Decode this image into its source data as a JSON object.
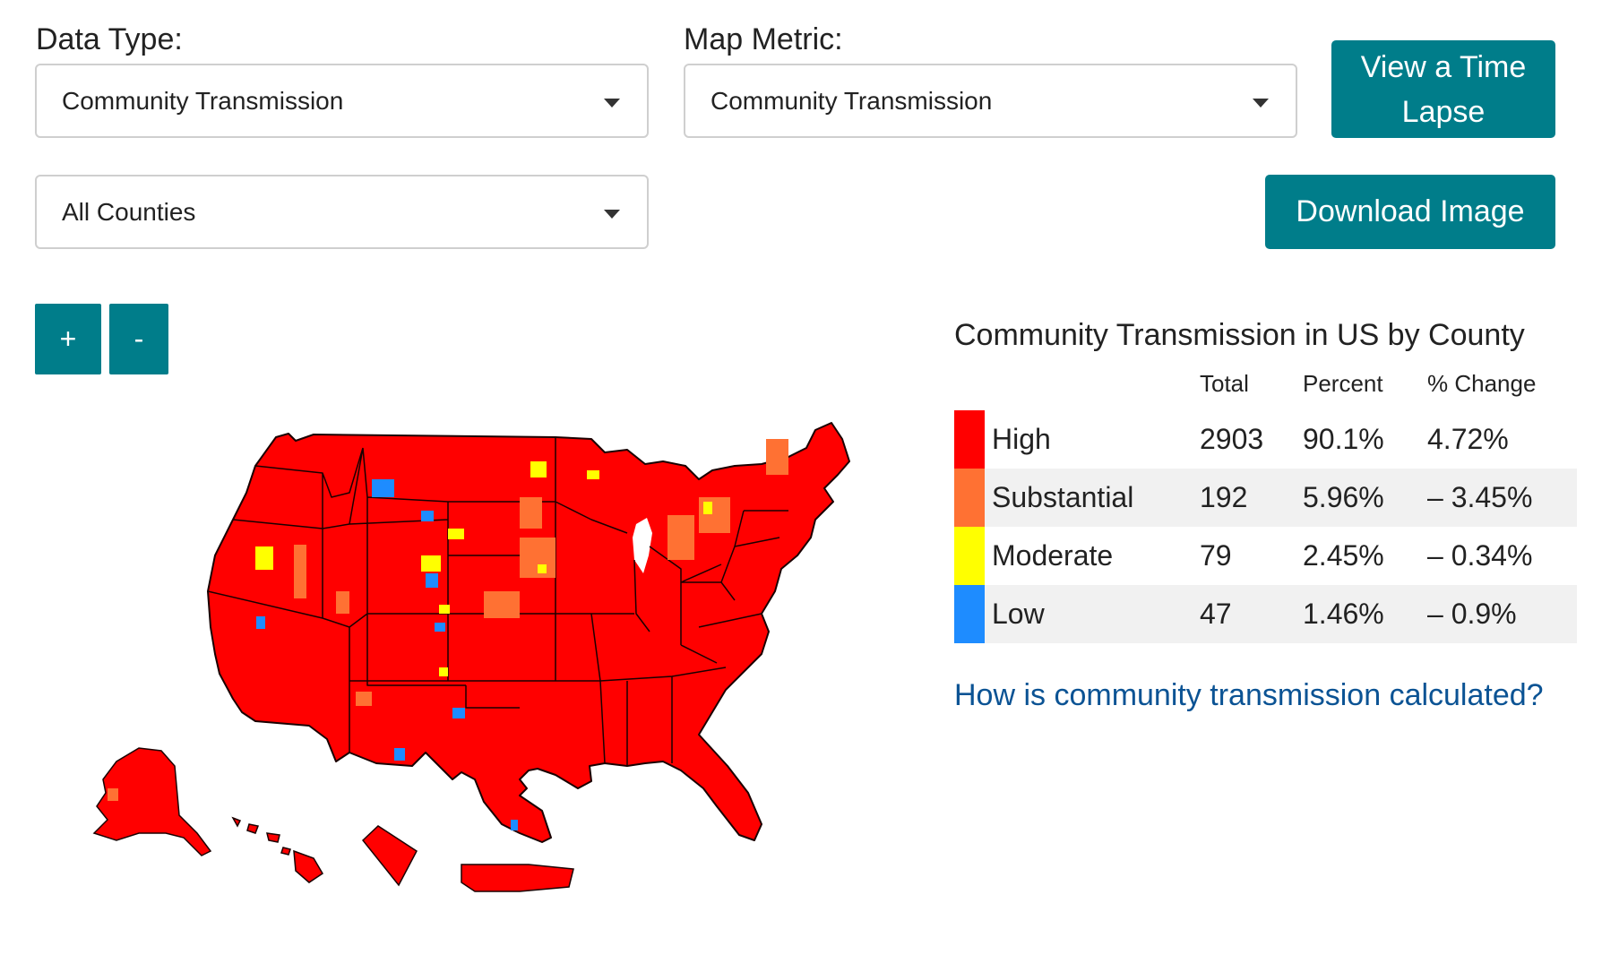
{
  "controls": {
    "data_type_label": "Data Type:",
    "data_type_value": "Community Transmission",
    "map_metric_label": "Map Metric:",
    "map_metric_value": "Community Transmission",
    "county_filter_value": "All Counties",
    "time_lapse_button": "View a Time Lapse",
    "download_button": "Download Image",
    "zoom_in_label": "+",
    "zoom_out_label": "-"
  },
  "legend": {
    "title": "Community Transmission in US by County",
    "headers": {
      "total": "Total",
      "percent": "Percent",
      "change": "% Change"
    },
    "rows": [
      {
        "level": "High",
        "total": "2903",
        "percent": "90.1%",
        "change": "4.72%",
        "color": "#ff0000"
      },
      {
        "level": "Substantial",
        "total": "192",
        "percent": "5.96%",
        "change": "– 3.45%",
        "color": "#ff7133"
      },
      {
        "level": "Moderate",
        "total": "79",
        "percent": "2.45%",
        "change": "– 0.34%",
        "color": "#ffff00"
      },
      {
        "level": "Low",
        "total": "47",
        "percent": "1.46%",
        "change": "– 0.9%",
        "color": "#1e8cff"
      }
    ]
  },
  "link_text": "How is community transmission calculated?",
  "map": {
    "dominant_color": "#ff0000",
    "border_color": "#1a0000",
    "regions": [
      "contiguous-us",
      "alaska",
      "hawaii",
      "puerto-rico",
      "district-of-columbia-inset"
    ]
  },
  "colors": {
    "accent": "#007d8a",
    "link": "#0b5394"
  }
}
